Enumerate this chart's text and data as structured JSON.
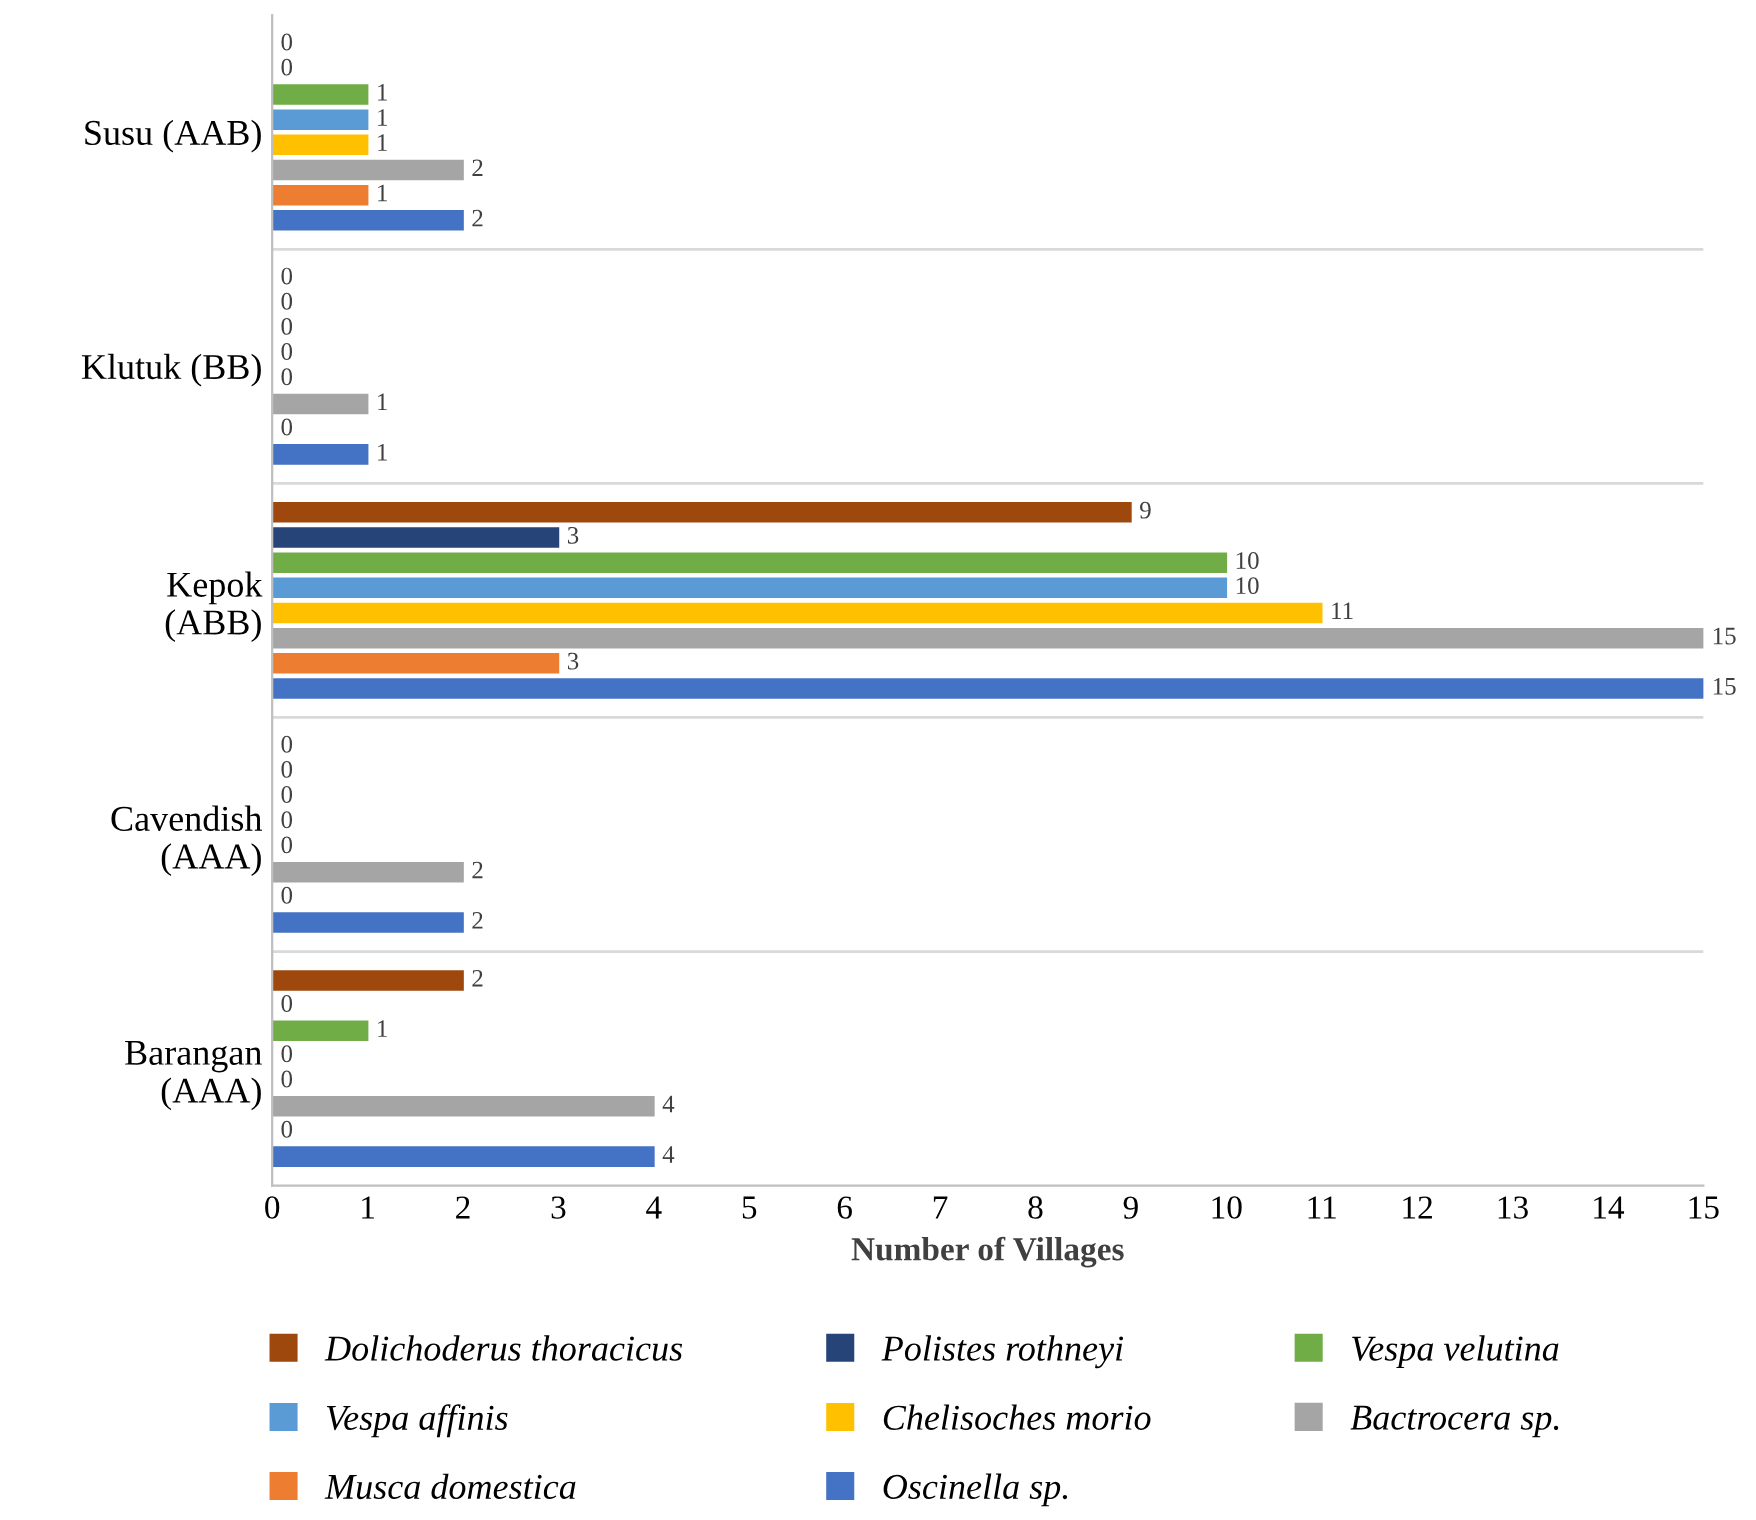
{
  "chart_data": {
    "type": "bar",
    "orientation": "horizontal",
    "xlabel": "Number of Villages",
    "categories": [
      "Susu (AAB)",
      "Klutuk (BB)",
      "Kepok\n(ABB)",
      "Cavendish\n(AAA)",
      "Barangan\n(AAA)"
    ],
    "series": [
      {
        "name": "Oscinella sp.",
        "color": "#4472c4",
        "values": [
          2,
          1,
          15,
          2,
          4
        ]
      },
      {
        "name": "Musca domestica",
        "color": "#ed7d31",
        "values": [
          1,
          0,
          3,
          0,
          0
        ]
      },
      {
        "name": "Bactrocera sp.",
        "color": "#a5a5a5",
        "values": [
          2,
          1,
          15,
          2,
          4
        ]
      },
      {
        "name": "Chelisoches morio",
        "color": "#ffc000",
        "values": [
          1,
          0,
          11,
          0,
          0
        ]
      },
      {
        "name": "Vespa affinis",
        "color": "#5b9bd5",
        "values": [
          1,
          0,
          10,
          0,
          0
        ]
      },
      {
        "name": "Vespa velutina",
        "color": "#70ad47",
        "values": [
          1,
          0,
          10,
          0,
          1
        ]
      },
      {
        "name": "Polistes rothneyi",
        "color": "#264478",
        "values": [
          0,
          0,
          3,
          0,
          0
        ]
      },
      {
        "name": "Dolichoderus thoracicus",
        "color": "#9e480e",
        "values": [
          0,
          0,
          9,
          0,
          2
        ]
      }
    ],
    "xlim": [
      0,
      15
    ],
    "xticks": [
      0,
      1,
      2,
      3,
      4,
      5,
      6,
      7,
      8,
      9,
      10,
      11,
      12,
      13,
      14,
      15
    ],
    "data_labels": true,
    "grid": false,
    "legend": "bottom"
  }
}
